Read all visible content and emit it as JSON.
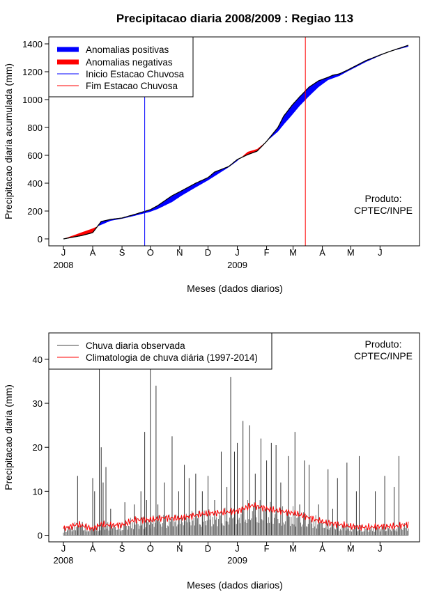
{
  "chart_data": [
    {
      "type": "area",
      "title": "Precipitacao diaria 2008/2009 : Regiao 113",
      "xlabel": "Meses (dados diarios)",
      "ylabel": "Precipitacao diaria acumulada (mm)",
      "ylim": [
        -50,
        1450
      ],
      "yticks": [
        0,
        200,
        400,
        600,
        800,
        1000,
        1200,
        1400
      ],
      "month_ticks": [
        "J",
        "A",
        "S",
        "O",
        "N",
        "D",
        "J",
        "F",
        "M",
        "A",
        "M",
        "J"
      ],
      "year_labels": [
        "2008",
        "2009"
      ],
      "x_unit": "day index from 1 Jul 2008",
      "observed_cumulative": {
        "x": [
          0,
          20,
          31,
          40,
          50,
          62,
          75,
          92,
          100,
          115,
          125,
          140,
          153,
          160,
          175,
          184,
          195,
          205,
          215,
          227,
          233,
          242,
          250,
          260,
          270,
          280,
          285,
          292,
          300,
          310,
          320,
          335,
          345,
          365
        ],
        "y": [
          0,
          25,
          45,
          125,
          140,
          150,
          175,
          210,
          240,
          310,
          345,
          400,
          440,
          480,
          520,
          570,
          605,
          630,
          700,
          800,
          880,
          960,
          1020,
          1090,
          1135,
          1160,
          1175,
          1185,
          1210,
          1245,
          1280,
          1320,
          1345,
          1390
        ]
      },
      "climatology_cumulative": {
        "x": [
          0,
          31,
          50,
          62,
          75,
          92,
          100,
          115,
          125,
          140,
          153,
          175,
          184,
          195,
          205,
          215,
          227,
          233,
          242,
          250,
          260,
          270,
          280,
          292,
          300,
          310,
          320,
          335,
          345,
          365
        ],
        "y": [
          0,
          75,
          130,
          145,
          165,
          195,
          215,
          265,
          310,
          370,
          420,
          515,
          560,
          625,
          645,
          700,
          770,
          820,
          890,
          955,
          1025,
          1090,
          1140,
          1170,
          1200,
          1235,
          1270,
          1315,
          1345,
          1380
        ]
      },
      "rainy_season_start_day": 86,
      "rainy_season_end_day": 256,
      "legend": {
        "position": "top-left",
        "entries": [
          {
            "label": "Anomalias positivas",
            "color": "#0000ff",
            "style": "thick"
          },
          {
            "label": "Anomalias negativas",
            "color": "#ff0000",
            "style": "thick"
          },
          {
            "label": "Inicio Estacao Chuvosa",
            "color": "#0000ff",
            "style": "line"
          },
          {
            "label": "Fim Estacao Chuvosa",
            "color": "#ff0000",
            "style": "line"
          }
        ]
      },
      "annotation": [
        "Produto:",
        "CPTEC/INPE"
      ]
    },
    {
      "type": "line",
      "title": "",
      "xlabel": "Meses (dados diarios)",
      "ylabel": "Precipitacao diaria (mm)",
      "ylim": [
        -1.5,
        46
      ],
      "yticks": [
        0,
        10,
        20,
        30,
        40
      ],
      "month_ticks": [
        "J",
        "A",
        "S",
        "O",
        "N",
        "D",
        "J",
        "F",
        "M",
        "A",
        "M",
        "J"
      ],
      "year_labels": [
        "2008",
        "2009"
      ],
      "x_unit": "day index from 1 Jul 2008",
      "observed_daily": {
        "x": [
          15,
          20,
          31,
          33,
          38,
          40,
          42,
          45,
          50,
          65,
          75,
          82,
          86,
          88,
          92,
          98,
          100,
          107,
          115,
          122,
          128,
          133,
          140,
          147,
          153,
          160,
          167,
          173,
          177,
          181,
          184,
          190,
          197,
          203,
          209,
          215,
          220,
          225,
          230,
          238,
          245,
          250,
          255,
          260,
          270,
          280,
          285,
          290,
          300,
          310,
          313,
          330,
          340,
          350,
          355
        ],
        "y": [
          13.5,
          3,
          13,
          10,
          38,
          20,
          12,
          15.5,
          6,
          7.5,
          7,
          10,
          23.5,
          8,
          38,
          34,
          7,
          12,
          22.5,
          10,
          16,
          13,
          14,
          10,
          13.5,
          8,
          19,
          11,
          36,
          19,
          21,
          26,
          25,
          14,
          22,
          17,
          21,
          20.5,
          12,
          18,
          23.5,
          7,
          17,
          16,
          7,
          15,
          6,
          13,
          16.5,
          10,
          18,
          10,
          13.5,
          11,
          18
        ]
      },
      "climatology_daily": {
        "x": [
          0,
          15,
          31,
          40,
          50,
          62,
          75,
          92,
          107,
          122,
          138,
          153,
          168,
          184,
          200,
          215,
          230,
          245,
          260,
          275,
          290,
          305,
          320,
          335,
          350,
          365
        ],
        "y": [
          1.5,
          2.5,
          1.5,
          2.5,
          2.3,
          2.3,
          3.5,
          3.5,
          4,
          3.8,
          4.5,
          5,
          5.2,
          5.5,
          6.8,
          6,
          5.5,
          5,
          4,
          3,
          2.5,
          2,
          1.8,
          2,
          2,
          2.5
        ]
      },
      "legend": {
        "position": "top-left",
        "entries": [
          {
            "label": "Chuva diaria observada",
            "color": "#444444",
            "style": "line"
          },
          {
            "label": "Climatologia de chuva diária (1997-2014)",
            "color": "#ff0000",
            "style": "line"
          }
        ]
      },
      "annotation": [
        "Produto:",
        "CPTEC/INPE"
      ]
    }
  ]
}
